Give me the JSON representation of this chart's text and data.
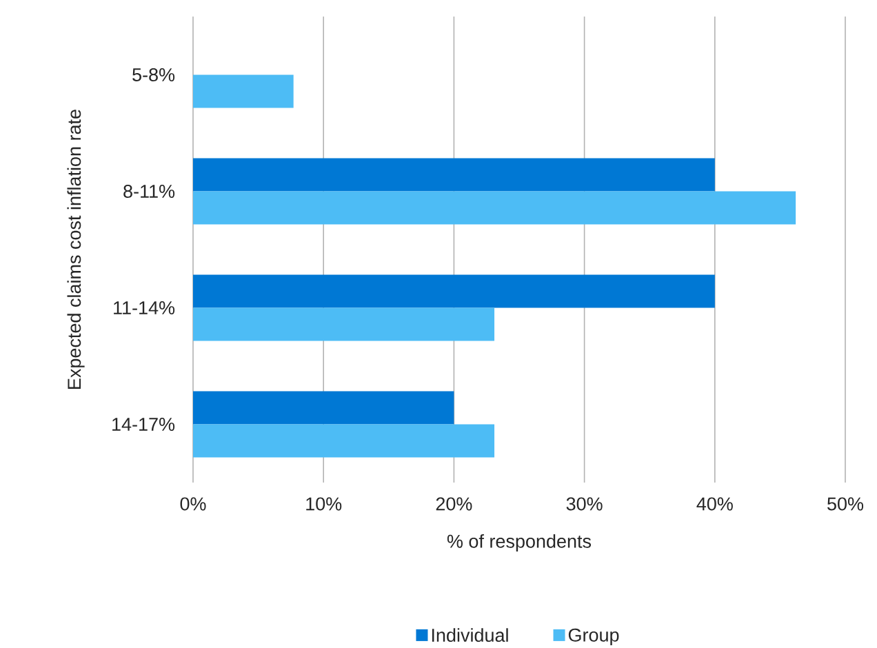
{
  "chart_data": {
    "type": "bar",
    "orientation": "horizontal",
    "xlabel": "% of respondents",
    "ylabel": "Expected claims cost inflation rate",
    "categories": [
      "5-8%",
      "8-11%",
      "11-14%",
      "14-17%"
    ],
    "series": [
      {
        "name": "Individual",
        "color": "#0078d4",
        "values": [
          null,
          40,
          40,
          20
        ]
      },
      {
        "name": "Group",
        "color": "#4dbcf5",
        "values": [
          7.7,
          46.2,
          23.1,
          23.1
        ]
      }
    ],
    "xlim": [
      0,
      50
    ],
    "xticks": [
      {
        "value": 0,
        "label": "0%"
      },
      {
        "value": 10,
        "label": "10%"
      },
      {
        "value": 20,
        "label": "20%"
      },
      {
        "value": 30,
        "label": "30%"
      },
      {
        "value": 40,
        "label": "40%"
      },
      {
        "value": 50,
        "label": "50%"
      }
    ],
    "grid": "x",
    "legend": "bottom"
  }
}
